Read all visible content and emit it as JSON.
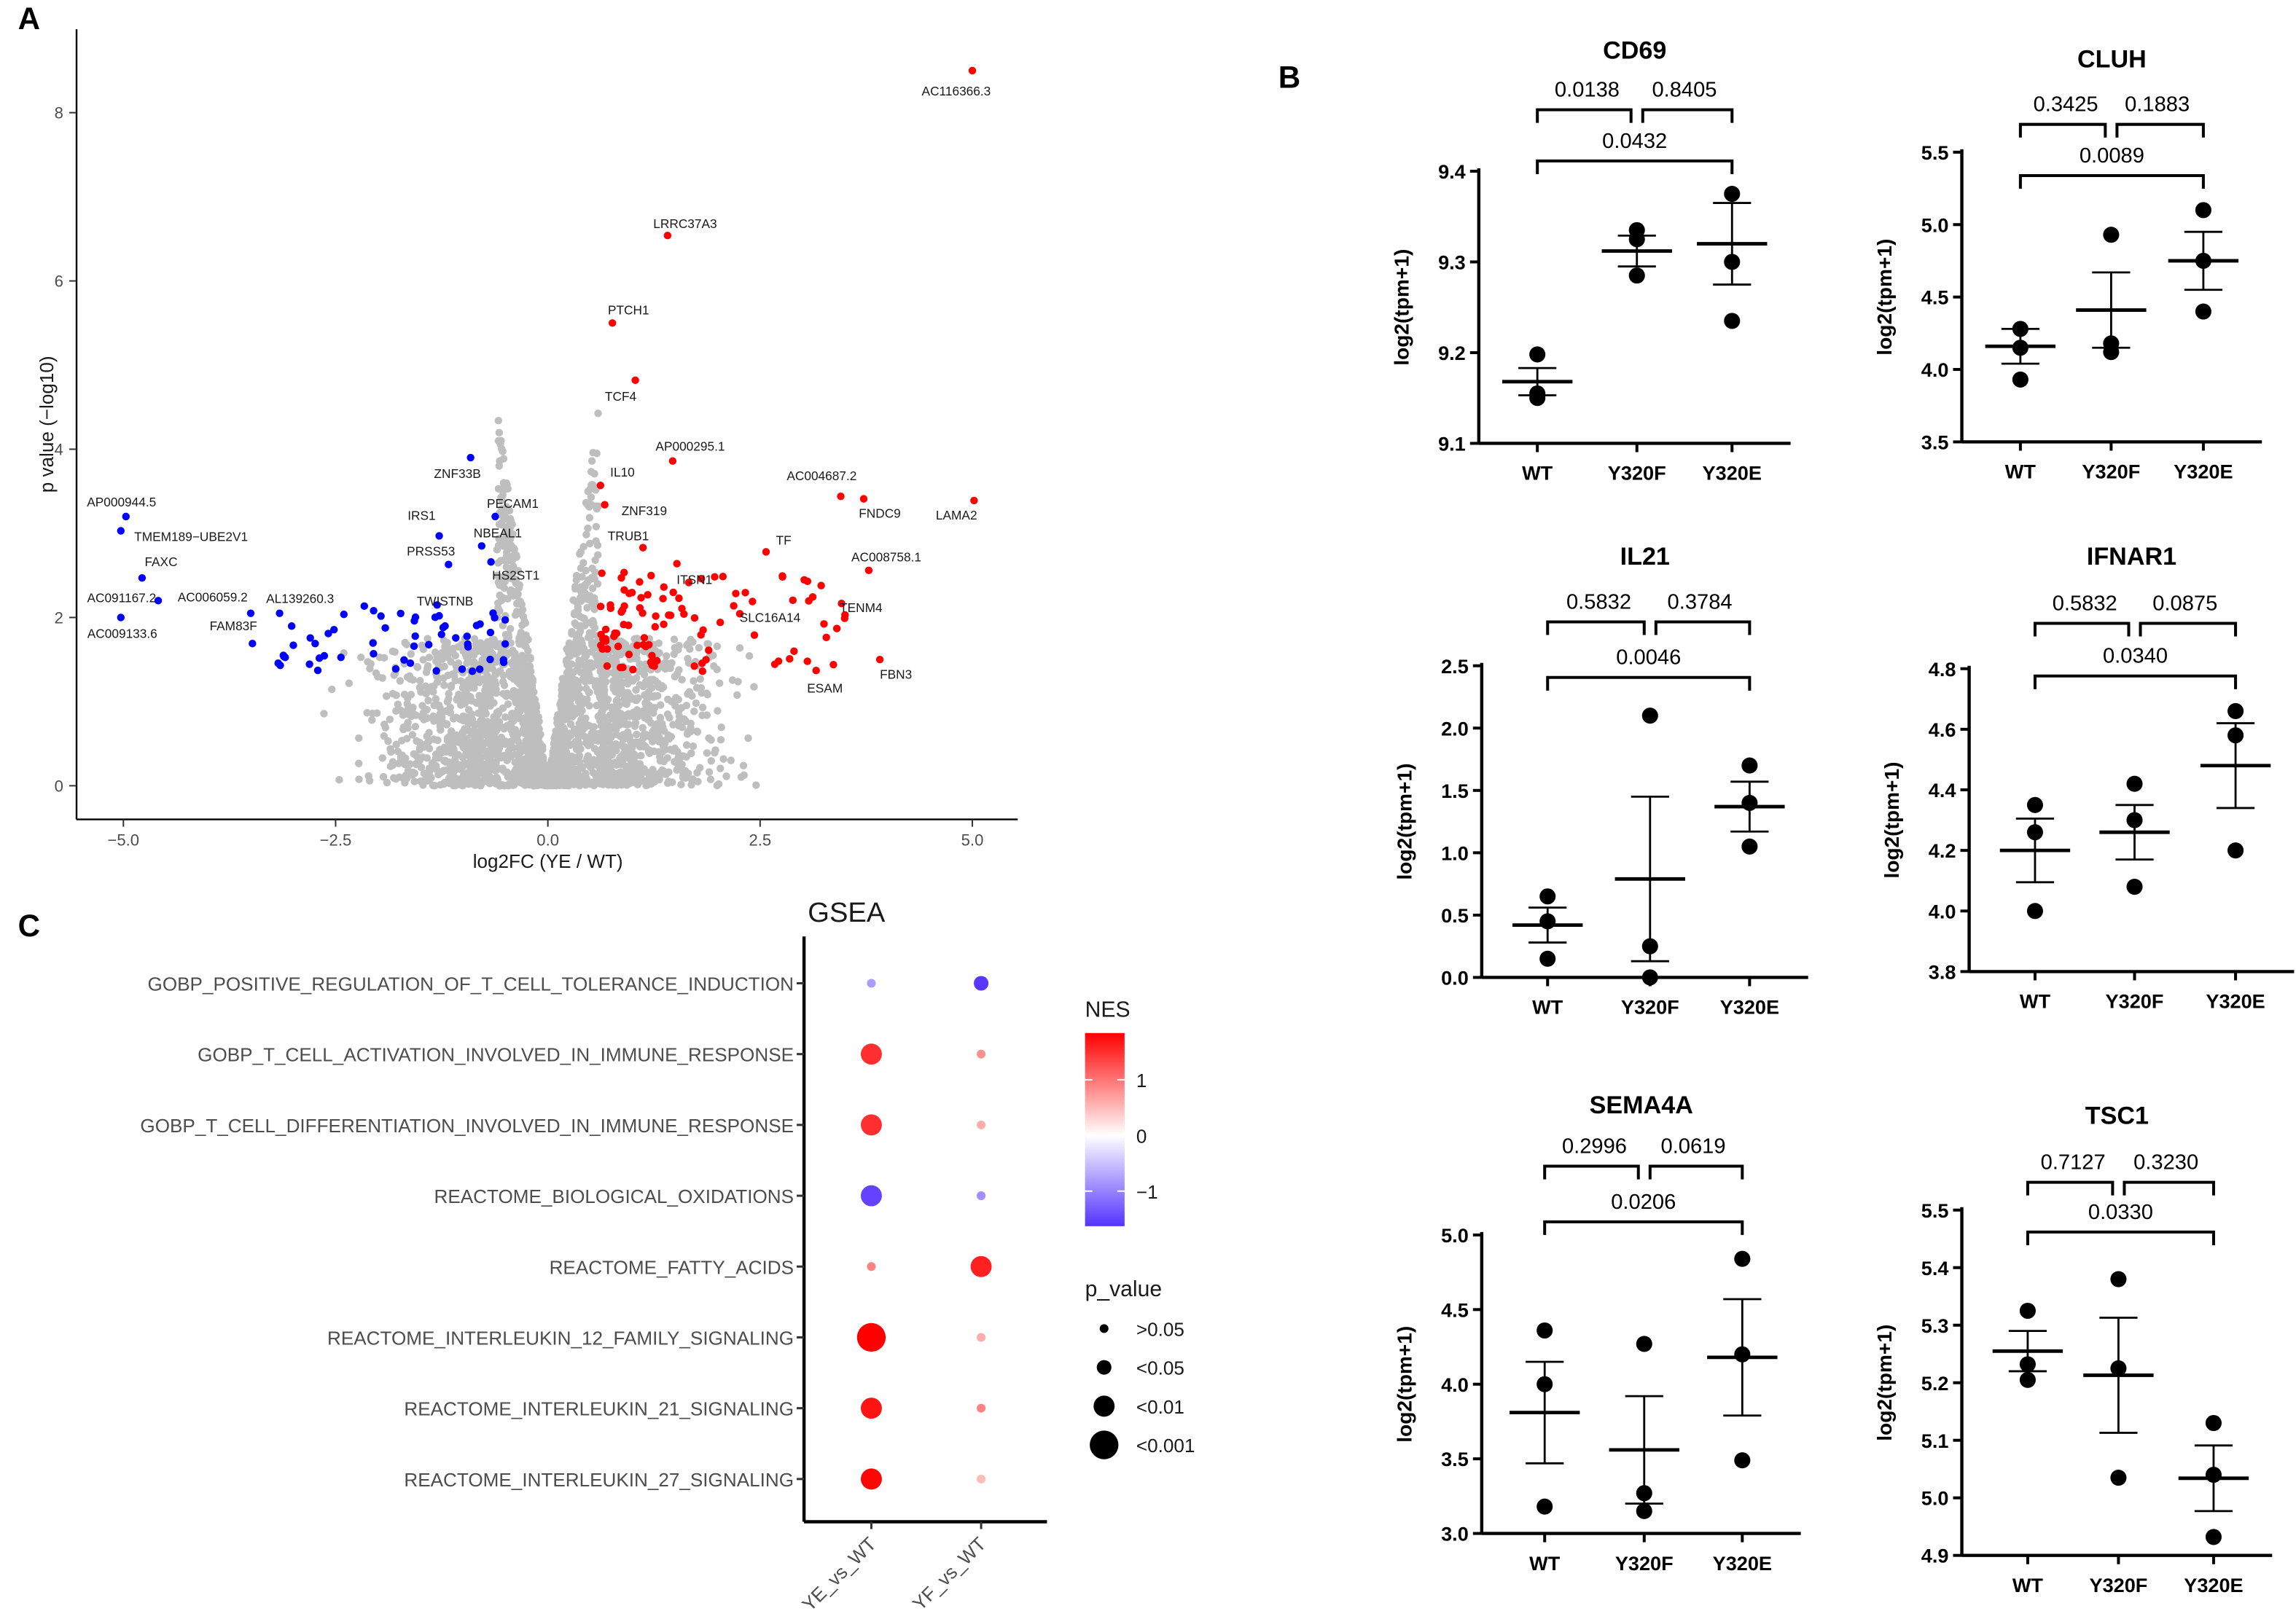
{
  "figure": {
    "panel_labels": [
      "A",
      "B",
      "C"
    ]
  },
  "chart_data": [
    {
      "type": "scatter",
      "panel": "A",
      "title": "",
      "xlabel": "log2FC (YE / WT)",
      "ylabel": "p value (−log10)",
      "xlim": [
        -5.5,
        5.6
      ],
      "ylim": [
        -0.3,
        8.8
      ],
      "xticks": [
        -5,
        -2.5,
        0,
        2.5,
        5
      ],
      "xtick_labels": [
        "−5.0",
        "−2.5",
        "0.0",
        "2.5",
        "5.0"
      ],
      "yticks": [
        0,
        2,
        4,
        6,
        8
      ],
      "ytick_labels": [
        "0",
        "2",
        "4",
        "6",
        "8"
      ],
      "colors": {
        "up": "#ff0000",
        "down": "#0000ff",
        "ns": "#bebebe"
      },
      "labeled_points": [
        {
          "gene": "AC116366.3",
          "x": 5.0,
          "y": 8.5,
          "dir": "up"
        },
        {
          "gene": "LRRC37A3",
          "x": 1.41,
          "y": 6.54,
          "dir": "up"
        },
        {
          "gene": "PTCH1",
          "x": 0.76,
          "y": 5.5,
          "dir": "up"
        },
        {
          "gene": "TCF4",
          "x": 1.03,
          "y": 4.82,
          "dir": "up"
        },
        {
          "gene": "AP000295.1",
          "x": 1.47,
          "y": 3.86,
          "dir": "up"
        },
        {
          "gene": "IL10",
          "x": 0.62,
          "y": 3.57,
          "dir": "up"
        },
        {
          "gene": "ZNF319",
          "x": 0.67,
          "y": 3.34,
          "dir": "up"
        },
        {
          "gene": "TRUB1",
          "x": 1.12,
          "y": 2.83,
          "dir": "up"
        },
        {
          "gene": "ITSN1",
          "x": 1.52,
          "y": 2.64,
          "dir": "up"
        },
        {
          "gene": "TF",
          "x": 2.57,
          "y": 2.78,
          "dir": "up"
        },
        {
          "gene": "AC004687.2",
          "x": 3.45,
          "y": 3.44,
          "dir": "up"
        },
        {
          "gene": "FNDC9",
          "x": 3.72,
          "y": 3.41,
          "dir": "up"
        },
        {
          "gene": "LAMA2",
          "x": 5.02,
          "y": 3.39,
          "dir": "up"
        },
        {
          "gene": "AC008758.1",
          "x": 3.78,
          "y": 2.56,
          "dir": "up"
        },
        {
          "gene": "TENM4",
          "x": 3.5,
          "y": 2.03,
          "dir": "up"
        },
        {
          "gene": "SLC16A14",
          "x": 2.41,
          "y": 2.19,
          "dir": "up"
        },
        {
          "gene": "ESAM",
          "x": 3.16,
          "y": 1.37,
          "dir": "up"
        },
        {
          "gene": "FBN3",
          "x": 3.91,
          "y": 1.5,
          "dir": "up"
        },
        {
          "gene": "ZNF33B",
          "x": -0.91,
          "y": 3.9,
          "dir": "down"
        },
        {
          "gene": "PECAM1",
          "x": -0.62,
          "y": 3.2,
          "dir": "down"
        },
        {
          "gene": "IRS1",
          "x": -1.28,
          "y": 2.97,
          "dir": "down"
        },
        {
          "gene": "NBEAL1",
          "x": -0.78,
          "y": 2.85,
          "dir": "down"
        },
        {
          "gene": "PRSS53",
          "x": -1.17,
          "y": 2.63,
          "dir": "down"
        },
        {
          "gene": "HS2ST1",
          "x": -0.67,
          "y": 2.66,
          "dir": "down"
        },
        {
          "gene": "TWISTNB",
          "x": -1.28,
          "y": 2.02,
          "dir": "down"
        },
        {
          "gene": "AP000944.5",
          "x": -4.97,
          "y": 3.2,
          "dir": "down"
        },
        {
          "gene": "TMEM189−UBE2V1",
          "x": -5.03,
          "y": 3.03,
          "dir": "down"
        },
        {
          "gene": "FAXC",
          "x": -4.78,
          "y": 2.47,
          "dir": "down"
        },
        {
          "gene": "AC091167.2",
          "x": -4.59,
          "y": 2.2,
          "dir": "down"
        },
        {
          "gene": "AC006059.2",
          "x": -3.5,
          "y": 2.05,
          "dir": "down"
        },
        {
          "gene": "AL139260.3",
          "x": -3.16,
          "y": 2.05,
          "dir": "down"
        },
        {
          "gene": "FAM83F",
          "x": -3.48,
          "y": 1.69,
          "dir": "down"
        },
        {
          "gene": "AC009133.6",
          "x": -5.03,
          "y": 2.0,
          "dir": "down"
        }
      ]
    },
    {
      "type": "scatter",
      "panel": "B",
      "title": "CD69",
      "ylabel": "log2(tpm+1)",
      "groups": [
        "WT",
        "Y320F",
        "Y320E"
      ],
      "values": [
        [
          9.198,
          9.155,
          9.15
        ],
        [
          9.335,
          9.325,
          9.285
        ],
        [
          9.375,
          9.3,
          9.235
        ]
      ],
      "mean": [
        9.168,
        9.312,
        9.32
      ],
      "sem": [
        0.015,
        0.017,
        0.045
      ],
      "yticks": [
        9.1,
        9.2,
        9.3,
        9.4
      ],
      "ytick_labels": [
        "9.1",
        "9.2",
        "9.3",
        "9.4"
      ],
      "comparisons": [
        {
          "pair": [
            "WT",
            "Y320F"
          ],
          "p": "0.0138"
        },
        {
          "pair": [
            "Y320F",
            "Y320E"
          ],
          "p": "0.8405"
        },
        {
          "pair": [
            "WT",
            "Y320E"
          ],
          "p": "0.0432"
        }
      ]
    },
    {
      "type": "scatter",
      "panel": "B",
      "title": "CLUH",
      "ylabel": "log2(tpm+1)",
      "groups": [
        "WT",
        "Y320F",
        "Y320E"
      ],
      "values": [
        [
          4.28,
          4.15,
          3.93
        ],
        [
          4.93,
          4.18,
          4.12
        ],
        [
          5.1,
          4.75,
          4.4
        ]
      ],
      "mean": [
        4.16,
        4.41,
        4.75
      ],
      "sem": [
        0.12,
        0.26,
        0.2
      ],
      "yticks": [
        3.5,
        4.0,
        4.5,
        5.0,
        5.5
      ],
      "ytick_labels": [
        "3.5",
        "4.0",
        "4.5",
        "5.0",
        "5.5"
      ],
      "comparisons": [
        {
          "pair": [
            "WT",
            "Y320F"
          ],
          "p": "0.3425"
        },
        {
          "pair": [
            "Y320F",
            "Y320E"
          ],
          "p": "0.1883"
        },
        {
          "pair": [
            "WT",
            "Y320E"
          ],
          "p": "0.0089"
        }
      ]
    },
    {
      "type": "scatter",
      "panel": "B",
      "title": "IL21",
      "ylabel": "log2(tpm+1)",
      "groups": [
        "WT",
        "Y320F",
        "Y320E"
      ],
      "values": [
        [
          0.65,
          0.45,
          0.15
        ],
        [
          2.1,
          0.25,
          0.0
        ],
        [
          1.7,
          1.4,
          1.05
        ]
      ],
      "mean": [
        0.42,
        0.79,
        1.37
      ],
      "sem": [
        0.14,
        0.66,
        0.2
      ],
      "yticks": [
        0.0,
        0.5,
        1.0,
        1.5,
        2.0,
        2.5
      ],
      "ytick_labels": [
        "0.0",
        "0.5",
        "1.0",
        "1.5",
        "2.0",
        "2.5"
      ],
      "comparisons": [
        {
          "pair": [
            "WT",
            "Y320F"
          ],
          "p": "0.5832"
        },
        {
          "pair": [
            "Y320F",
            "Y320E"
          ],
          "p": "0.3784"
        },
        {
          "pair": [
            "WT",
            "Y320E"
          ],
          "p": "0.0046"
        }
      ]
    },
    {
      "type": "scatter",
      "panel": "B",
      "title": "IFNAR1",
      "ylabel": "log2(tpm+1)",
      "groups": [
        "WT",
        "Y320F",
        "Y320E"
      ],
      "values": [
        [
          4.35,
          4.26,
          4.0
        ],
        [
          4.42,
          4.3,
          4.08
        ],
        [
          4.66,
          4.58,
          4.2
        ]
      ],
      "mean": [
        4.2,
        4.26,
        4.48
      ],
      "sem": [
        0.105,
        0.09,
        0.14
      ],
      "yticks": [
        3.8,
        4.0,
        4.2,
        4.4,
        4.6,
        4.8
      ],
      "ytick_labels": [
        "3.8",
        "4.0",
        "4.2",
        "4.4",
        "4.6",
        "4.8"
      ],
      "comparisons": [
        {
          "pair": [
            "WT",
            "Y320F"
          ],
          "p": "0.5832"
        },
        {
          "pair": [
            "Y320F",
            "Y320E"
          ],
          "p": "0.0875"
        },
        {
          "pair": [
            "WT",
            "Y320E"
          ],
          "p": "0.0340"
        }
      ]
    },
    {
      "type": "scatter",
      "panel": "B",
      "title": "SEMA4A",
      "ylabel": "log2(tpm+1)",
      "groups": [
        "WT",
        "Y320F",
        "Y320E"
      ],
      "values": [
        [
          4.36,
          4.0,
          3.18
        ],
        [
          4.27,
          3.27,
          3.15
        ],
        [
          4.84,
          4.2,
          3.49
        ]
      ],
      "mean": [
        3.81,
        3.56,
        4.18
      ],
      "sem": [
        0.34,
        0.36,
        0.39
      ],
      "yticks": [
        3.0,
        3.5,
        4.0,
        4.5,
        5.0
      ],
      "ytick_labels": [
        "3.0",
        "3.5",
        "4.0",
        "4.5",
        "5.0"
      ],
      "comparisons": [
        {
          "pair": [
            "WT",
            "Y320F"
          ],
          "p": "0.2996"
        },
        {
          "pair": [
            "Y320F",
            "Y320E"
          ],
          "p": "0.0619"
        },
        {
          "pair": [
            "WT",
            "Y320E"
          ],
          "p": "0.0206"
        }
      ]
    },
    {
      "type": "scatter",
      "panel": "B",
      "title": "TSC1",
      "ylabel": "log2(tpm+1)",
      "groups": [
        "WT",
        "Y320F",
        "Y320E"
      ],
      "values": [
        [
          5.325,
          5.232,
          5.205
        ],
        [
          5.38,
          5.225,
          5.035
        ],
        [
          5.13,
          5.04,
          4.932
        ]
      ],
      "mean": [
        5.255,
        5.213,
        5.034
      ],
      "sem": [
        0.035,
        0.1,
        0.057
      ],
      "yticks": [
        4.9,
        5.0,
        5.1,
        5.2,
        5.3,
        5.4,
        5.5
      ],
      "ytick_labels": [
        "4.9",
        "5.0",
        "5.1",
        "5.2",
        "5.3",
        "5.4",
        "5.5"
      ],
      "comparisons": [
        {
          "pair": [
            "WT",
            "Y320F"
          ],
          "p": "0.7127"
        },
        {
          "pair": [
            "Y320F",
            "Y320E"
          ],
          "p": "0.3230"
        },
        {
          "pair": [
            "WT",
            "Y320E"
          ],
          "p": "0.0330"
        }
      ]
    },
    {
      "type": "scatter",
      "panel": "C",
      "title": "GSEA",
      "columns": [
        "YE_vs_WT",
        "YF_vs_WT"
      ],
      "rows": [
        "GOBP_POSITIVE_REGULATION_OF_T_CELL_TOLERANCE_INDUCTION",
        "GOBP_T_CELL_ACTIVATION_INVOLVED_IN_IMMUNE_RESPONSE",
        "GOBP_T_CELL_DIFFERENTIATION_INVOLVED_IN_IMMUNE_RESPONSE",
        "REACTOME_BIOLOGICAL_OXIDATIONS",
        "REACTOME_FATTY_ACIDS",
        "REACTOME_INTERLEUKIN_12_FAMILY_SIGNALING",
        "REACTOME_INTERLEUKIN_21_SIGNALING",
        "REACTOME_INTERLEUKIN_27_SIGNALING"
      ],
      "nes": [
        [
          -0.8,
          -1.6
        ],
        [
          1.5,
          0.8
        ],
        [
          1.5,
          0.6
        ],
        [
          -1.5,
          -0.9
        ],
        [
          0.9,
          1.6
        ],
        [
          1.9,
          0.6
        ],
        [
          1.7,
          0.9
        ],
        [
          1.8,
          0.5
        ]
      ],
      "p_category": [
        [
          ">0.05",
          "<0.05"
        ],
        [
          "<0.01",
          ">0.05"
        ],
        [
          "<0.01",
          ">0.05"
        ],
        [
          "<0.01",
          ">0.05"
        ],
        [
          ">0.05",
          "<0.01"
        ],
        [
          "<0.001",
          ">0.05"
        ],
        [
          "<0.01",
          ">0.05"
        ],
        [
          "<0.01",
          ">0.05"
        ]
      ],
      "color_legend": {
        "title": "NES",
        "ticks": [
          1,
          0,
          -1
        ],
        "tick_labels": [
          "1",
          "0",
          "−1"
        ],
        "range": [
          -1.63,
          1.84
        ],
        "low": "#5533ff",
        "mid": "#ffffff",
        "high": "#ff0000"
      },
      "size_legend": {
        "title": "p_value",
        "labels": [
          ">0.05",
          "<0.05",
          "<0.01",
          "<0.001"
        ]
      }
    }
  ]
}
